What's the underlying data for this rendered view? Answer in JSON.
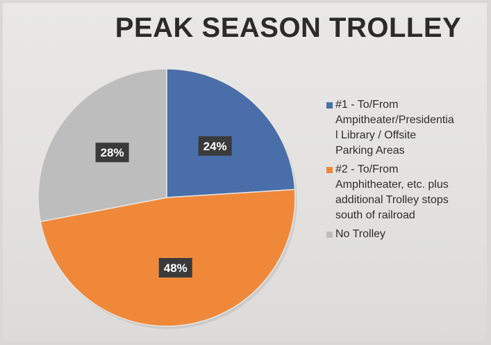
{
  "chart_data": {
    "type": "pie",
    "title": "PEAK SEASON TROLLEY",
    "categories": [
      "#1 - To/From Ampitheater/Presidentia l Library / Offsite Parking Areas",
      "#2 - To/From Amphitheater, etc. plus additional Trolley stops south of railroad",
      "No Trolley"
    ],
    "legend_lines": [
      "#1 - To/From\nAmpitheater/Presidentia\nl Library / Offsite\nParking Areas",
      "#2 - To/From\nAmphitheater, etc. plus\nadditional Trolley stops\nsouth of railroad",
      "No Trolley"
    ],
    "values": [
      24,
      48,
      28
    ],
    "data_labels": [
      "24%",
      "48%",
      "28%"
    ],
    "colors": [
      "#4a6ea9",
      "#f0883a",
      "#bdbdbd"
    ],
    "legend_position": "right"
  }
}
